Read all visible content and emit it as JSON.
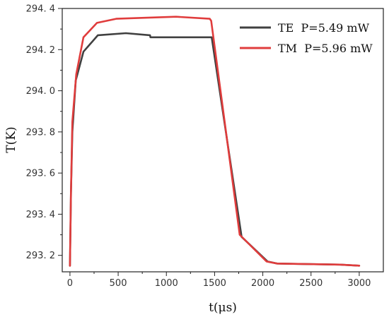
{
  "chart_data": {
    "type": "line",
    "title": "",
    "xlabel": "t(μs)",
    "ylabel": "T(K)",
    "xlim": [
      -80,
      3250
    ],
    "ylim": [
      293.12,
      294.4
    ],
    "xticks": [
      0,
      500,
      1000,
      1500,
      2000,
      2500,
      3000
    ],
    "yticks": [
      293.2,
      293.4,
      293.6,
      293.8,
      294.0,
      294.2,
      294.4
    ],
    "ytick_labels": [
      "293. 2",
      "293. 4",
      "293. 6",
      "293. 8",
      "294. 0",
      "294. 2",
      "294. 4"
    ],
    "grid": false,
    "legend_position": "top-right",
    "series": [
      {
        "name": "TE  P=5.49 mW",
        "color": "#404040",
        "points": [
          [
            0,
            293.15
          ],
          [
            10,
            293.5
          ],
          [
            25,
            293.8
          ],
          [
            60,
            294.05
          ],
          [
            140,
            294.19
          ],
          [
            290,
            294.27
          ],
          [
            580,
            294.28
          ],
          [
            830,
            294.27
          ],
          [
            835,
            294.26
          ],
          [
            1470,
            294.26
          ],
          [
            1780,
            293.29
          ],
          [
            2050,
            293.17
          ],
          [
            2150,
            293.16
          ],
          [
            2800,
            293.155
          ],
          [
            3000,
            293.15
          ]
        ]
      },
      {
        "name": "TM  P=5.96 mW",
        "color": "#e03c3c",
        "points": [
          [
            0,
            293.15
          ],
          [
            10,
            293.5
          ],
          [
            25,
            293.85
          ],
          [
            65,
            294.08
          ],
          [
            140,
            294.26
          ],
          [
            280,
            294.33
          ],
          [
            480,
            294.35
          ],
          [
            800,
            294.355
          ],
          [
            1100,
            294.36
          ],
          [
            1450,
            294.35
          ],
          [
            1465,
            294.34
          ],
          [
            1760,
            293.3
          ],
          [
            2040,
            293.17
          ],
          [
            2150,
            293.16
          ],
          [
            2800,
            293.155
          ],
          [
            3000,
            293.15
          ]
        ]
      }
    ]
  }
}
